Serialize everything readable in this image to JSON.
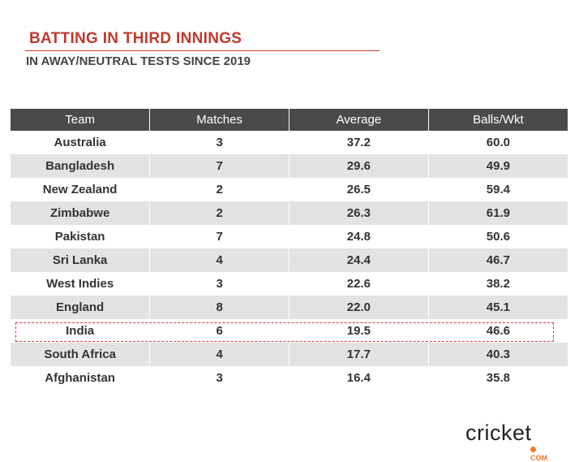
{
  "title": "BATTING IN THIRD INNINGS",
  "subtitle": "IN AWAY/NEUTRAL TESTS SINCE 2019",
  "columns": [
    "Team",
    "Matches",
    "Average",
    "Balls/Wkt"
  ],
  "rows": [
    [
      "Australia",
      "3",
      "37.2",
      "60.0"
    ],
    [
      "Bangladesh",
      "7",
      "29.6",
      "49.9"
    ],
    [
      "New Zealand",
      "2",
      "26.5",
      "59.4"
    ],
    [
      "Zimbabwe",
      "2",
      "26.3",
      "61.9"
    ],
    [
      "Pakistan",
      "7",
      "24.8",
      "50.6"
    ],
    [
      "Sri Lanka",
      "4",
      "24.4",
      "46.7"
    ],
    [
      "West Indies",
      "3",
      "22.6",
      "38.2"
    ],
    [
      "England",
      "8",
      "22.0",
      "45.1"
    ],
    [
      "India",
      "6",
      "19.5",
      "46.6"
    ],
    [
      "South Africa",
      "4",
      "17.7",
      "40.3"
    ],
    [
      "Afghanistan",
      "3",
      "16.4",
      "35.8"
    ]
  ],
  "highlighted_team": "India",
  "logo": {
    "word": "cricket",
    "suffix": "COM"
  },
  "colors": {
    "accent": "#c0392b",
    "header": "#4a4a4a",
    "alt_row": "#e3e3e3"
  }
}
